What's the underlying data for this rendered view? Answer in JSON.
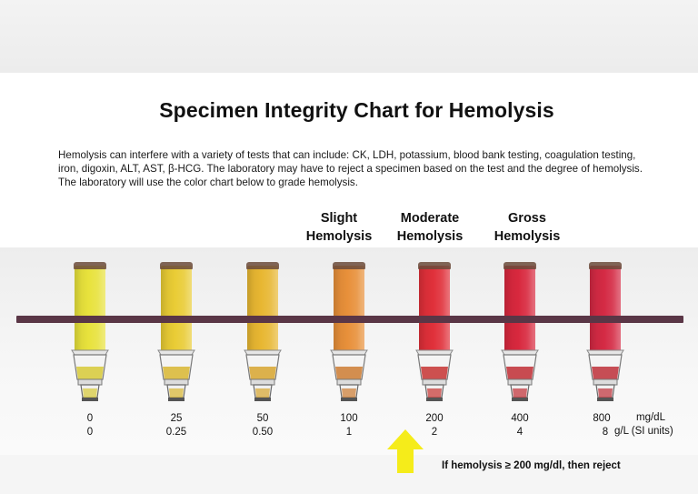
{
  "title": "Specimen Integrity Chart for Hemolysis",
  "description_lines": [
    "Hemolysis can interfere with a variety of tests that can include: CK, LDH, potassium, blood bank testing, coagulation testing,",
    "iron, digoxin, ALT, AST, β-HCG. The laboratory may have to reject a specimen based on the test and the degree of hemolysis.",
    "The laboratory will use the color chart below to grade hemolysis."
  ],
  "severity_labels": [
    {
      "line1": "Slight",
      "line2": "Hemolysis"
    },
    {
      "line1": "Moderate",
      "line2": "Hemolysis"
    },
    {
      "line1": "Gross",
      "line2": "Hemolysis"
    }
  ],
  "samples": [
    {
      "mg_dl": "0",
      "si": "0",
      "color": "#e8e23c"
    },
    {
      "mg_dl": "25",
      "si": "0.25",
      "color": "#e9cc35"
    },
    {
      "mg_dl": "50",
      "si": "0.50",
      "color": "#e8b732"
    },
    {
      "mg_dl": "100",
      "si": "1",
      "color": "#e8903a"
    },
    {
      "mg_dl": "200",
      "si": "2",
      "color": "#e0303a"
    },
    {
      "mg_dl": "400",
      "si": "4",
      "color": "#d8283e"
    },
    {
      "mg_dl": "800",
      "si": "8",
      "color": "#d42a44"
    }
  ],
  "units": {
    "mg_dl": "mg/dL",
    "si": "g/L (SI units)"
  },
  "reject_note": "If hemolysis ≥ 200 mg/dl, then reject",
  "arrow_color": "#f5ec1a",
  "rule_color": "#5a3646"
}
